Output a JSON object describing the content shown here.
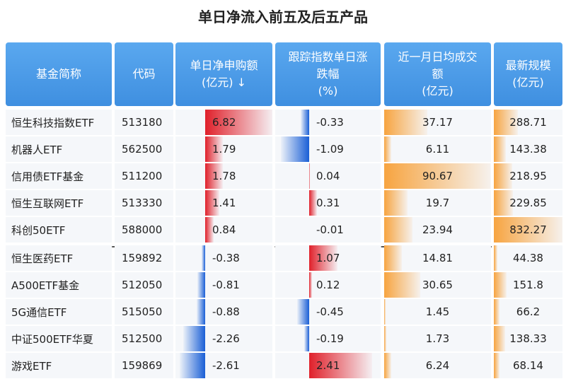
{
  "title": "单日净流入前五及后五产品",
  "table": {
    "header": [
      [
        "基金简称"
      ],
      [
        "代码"
      ],
      [
        "单日净申购额",
        "(亿元) ↓"
      ],
      [
        "跟踪指数单日涨",
        "跌幅",
        "(%)"
      ],
      [
        "近一月日均成交",
        "额",
        "(亿元)"
      ],
      [
        "最新规模",
        "(亿元)"
      ]
    ],
    "rows": [
      [
        "恒生科技指数ETF",
        "513180",
        6.82,
        -0.33,
        37.17,
        288.71
      ],
      [
        "机器人ETF",
        "562500",
        1.79,
        -1.09,
        6.11,
        143.38
      ],
      [
        "信用债ETF基金",
        "511200",
        1.78,
        0.04,
        90.67,
        218.95
      ],
      [
        "恒生互联网ETF",
        "513330",
        1.41,
        0.31,
        19.7,
        229.85
      ],
      [
        "科创50ETF",
        "588000",
        0.84,
        -0.01,
        23.94,
        832.27
      ],
      [
        "恒生医药ETF",
        "159892",
        -0.38,
        1.07,
        14.81,
        44.38
      ],
      [
        "A500ETF基金",
        "512050",
        -0.81,
        0.12,
        30.65,
        151.8
      ],
      [
        "5G通信ETF",
        "515050",
        -0.88,
        -0.45,
        1.45,
        66.2
      ],
      [
        "中证500ETF华夏",
        "512500",
        -2.26,
        -0.19,
        1.73,
        138.33
      ],
      [
        "游戏ETF",
        "159869",
        -2.61,
        2.41,
        6.24,
        68.14
      ]
    ]
  }
}
